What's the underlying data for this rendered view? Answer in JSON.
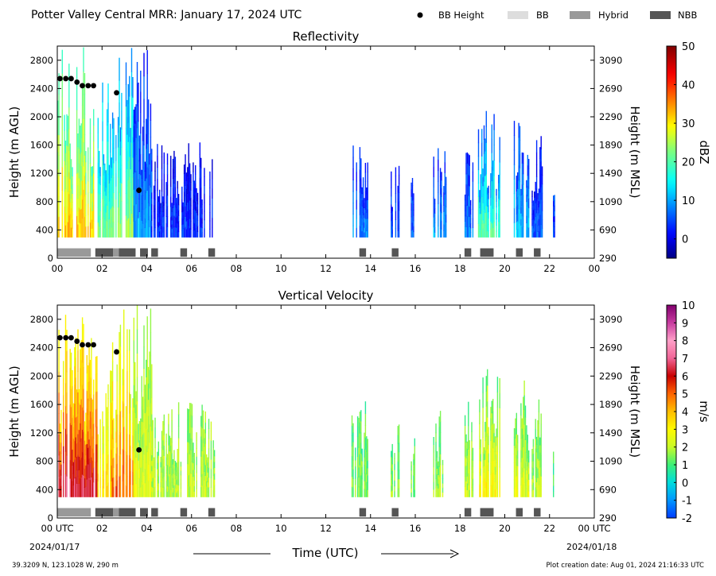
{
  "header": {
    "title": "Potter Valley Central MRR:  January 17, 2024 UTC",
    "legend": [
      {
        "label": "BB Height",
        "kind": "dot",
        "color": "#000000"
      },
      {
        "label": "BB",
        "kind": "box",
        "color": "#dddddd"
      },
      {
        "label": "Hybrid",
        "kind": "box",
        "color": "#999999"
      },
      {
        "label": "NBB",
        "kind": "box",
        "color": "#555555"
      }
    ]
  },
  "footer": {
    "location": "39.3209 N, 123.1028 W, 290 m",
    "created": "Plot creation date: Aug 01, 2024 21:16:33 UTC",
    "start_date": "2024/01/17",
    "end_date": "2024/01/18"
  },
  "colors": {
    "bb": "#dddddd",
    "hybrid": "#999999",
    "nbb": "#555555"
  },
  "chart_data": [
    {
      "type": "heatmap",
      "title": "Reflectivity",
      "xlabel": "",
      "ylabel": "Height (m AGL)",
      "ylabel_right": "Height (m MSL)",
      "xlim": [
        0,
        24
      ],
      "ylim": [
        0,
        3000
      ],
      "x_ticks": [
        "00",
        "02",
        "04",
        "06",
        "08",
        "10",
        "12",
        "14",
        "16",
        "18",
        "20",
        "22",
        "00"
      ],
      "y_ticks": [
        0,
        400,
        800,
        1200,
        1600,
        2000,
        2400,
        2800
      ],
      "y_ticks_right": [
        290,
        690,
        1090,
        1490,
        1890,
        2290,
        2690,
        3090
      ],
      "colorbar": {
        "label": "dBZ",
        "range": [
          -5,
          50
        ],
        "ticks": [
          0,
          10,
          20,
          30,
          40,
          50
        ],
        "colormap": "jet"
      },
      "bb_height": {
        "times": [
          0.12,
          0.38,
          0.62,
          0.88,
          1.12,
          1.38,
          1.62,
          2.65,
          3.65
        ],
        "heights": [
          2540,
          2540,
          2540,
          2490,
          2440,
          2440,
          2440,
          2340,
          960
        ]
      },
      "bb_type_segments": [
        {
          "start": 0.0,
          "end": 1.5,
          "type": "Hybrid"
        },
        {
          "start": 1.7,
          "end": 2.5,
          "type": "NBB"
        },
        {
          "start": 2.5,
          "end": 2.75,
          "type": "Hybrid"
        },
        {
          "start": 2.75,
          "end": 3.5,
          "type": "NBB"
        },
        {
          "start": 3.7,
          "end": 4.05,
          "type": "NBB"
        },
        {
          "start": 4.2,
          "end": 4.5,
          "type": "NBB"
        },
        {
          "start": 5.5,
          "end": 5.8,
          "type": "NBB"
        },
        {
          "start": 6.75,
          "end": 7.05,
          "type": "NBB"
        },
        {
          "start": 13.5,
          "end": 13.8,
          "type": "NBB"
        },
        {
          "start": 14.95,
          "end": 15.25,
          "type": "NBB"
        },
        {
          "start": 18.2,
          "end": 18.5,
          "type": "NBB"
        },
        {
          "start": 18.9,
          "end": 19.5,
          "type": "NBB"
        },
        {
          "start": 20.5,
          "end": 20.8,
          "type": "NBB"
        },
        {
          "start": 21.3,
          "end": 21.6,
          "type": "NBB"
        }
      ],
      "echo_regions": [
        {
          "t0": 0.0,
          "t1": 1.8,
          "top": 3000,
          "v_low": 32,
          "v_high": 18
        },
        {
          "t0": 1.8,
          "t1": 2.4,
          "top": 2600,
          "v_low": 22,
          "v_high": 10
        },
        {
          "t0": 2.4,
          "t1": 3.4,
          "top": 3000,
          "v_low": 24,
          "v_high": 8
        },
        {
          "t0": 3.4,
          "t1": 4.2,
          "top": 3000,
          "v_low": 10,
          "v_high": 2
        },
        {
          "t0": 4.2,
          "t1": 5.9,
          "top": 1650,
          "v_low": 4,
          "v_high": 0
        },
        {
          "t0": 5.9,
          "t1": 7.0,
          "top": 1650,
          "v_low": 3,
          "v_high": 1
        },
        {
          "t0": 13.1,
          "t1": 13.9,
          "top": 1650,
          "v_low": 8,
          "v_high": 2
        },
        {
          "t0": 14.9,
          "t1": 15.3,
          "top": 1350,
          "v_low": 5,
          "v_high": 2
        },
        {
          "t0": 15.8,
          "t1": 16.0,
          "top": 1600,
          "v_low": 6,
          "v_high": 3
        },
        {
          "t0": 16.8,
          "t1": 17.4,
          "top": 1700,
          "v_low": 10,
          "v_high": 2
        },
        {
          "t0": 18.2,
          "t1": 18.6,
          "top": 1700,
          "v_low": 8,
          "v_high": 2
        },
        {
          "t0": 18.8,
          "t1": 19.8,
          "top": 2100,
          "v_low": 20,
          "v_high": 5
        },
        {
          "t0": 20.4,
          "t1": 21.1,
          "top": 2150,
          "v_low": 12,
          "v_high": 4
        },
        {
          "t0": 21.2,
          "t1": 21.7,
          "top": 1750,
          "v_low": 6,
          "v_high": 1
        },
        {
          "t0": 22.15,
          "t1": 22.25,
          "top": 1300,
          "v_low": 4,
          "v_high": 4
        }
      ]
    },
    {
      "type": "heatmap",
      "title": "Vertical Velocity",
      "xlabel": "Time (UTC)",
      "ylabel": "Height (m AGL)",
      "ylabel_right": "Height (m MSL)",
      "xlim": [
        0,
        24
      ],
      "ylim": [
        0,
        3000
      ],
      "x_ticks": [
        "00 UTC",
        "02",
        "04",
        "06",
        "08",
        "10",
        "12",
        "14",
        "16",
        "18",
        "20",
        "22",
        "00 UTC"
      ],
      "y_ticks": [
        0,
        400,
        800,
        1200,
        1600,
        2000,
        2400,
        2800
      ],
      "y_ticks_right": [
        290,
        690,
        1090,
        1490,
        1890,
        2290,
        2690,
        3090
      ],
      "colorbar": {
        "label": "m/s",
        "range": [
          -2,
          10
        ],
        "ticks": [
          -2,
          -1,
          0,
          1,
          2,
          3,
          4,
          5,
          6,
          7,
          8,
          9,
          10
        ]
      },
      "bb_height": {
        "times": [
          0.12,
          0.38,
          0.62,
          0.88,
          1.12,
          1.38,
          1.62,
          2.65,
          3.65
        ],
        "heights": [
          2540,
          2540,
          2540,
          2490,
          2440,
          2440,
          2440,
          2340,
          960
        ]
      },
      "bb_type_segments": [
        {
          "start": 0.0,
          "end": 1.5,
          "type": "Hybrid"
        },
        {
          "start": 1.7,
          "end": 2.5,
          "type": "NBB"
        },
        {
          "start": 2.5,
          "end": 2.75,
          "type": "Hybrid"
        },
        {
          "start": 2.75,
          "end": 3.5,
          "type": "NBB"
        },
        {
          "start": 3.7,
          "end": 4.05,
          "type": "NBB"
        },
        {
          "start": 4.2,
          "end": 4.5,
          "type": "NBB"
        },
        {
          "start": 5.5,
          "end": 5.8,
          "type": "NBB"
        },
        {
          "start": 6.75,
          "end": 7.05,
          "type": "NBB"
        },
        {
          "start": 13.5,
          "end": 13.8,
          "type": "NBB"
        },
        {
          "start": 14.95,
          "end": 15.25,
          "type": "NBB"
        },
        {
          "start": 18.2,
          "end": 18.5,
          "type": "NBB"
        },
        {
          "start": 18.9,
          "end": 19.5,
          "type": "NBB"
        },
        {
          "start": 20.5,
          "end": 20.8,
          "type": "NBB"
        },
        {
          "start": 21.3,
          "end": 21.6,
          "type": "NBB"
        }
      ],
      "echo_regions": [
        {
          "t0": 0.0,
          "t1": 1.8,
          "top": 3000,
          "v_low": 6.5,
          "v_high": 2.5
        },
        {
          "t0": 1.8,
          "t1": 2.4,
          "top": 2600,
          "v_low": 3.5,
          "v_high": 2
        },
        {
          "t0": 2.4,
          "t1": 3.4,
          "top": 3000,
          "v_low": 5,
          "v_high": 2
        },
        {
          "t0": 3.4,
          "t1": 4.2,
          "top": 3000,
          "v_low": 2.5,
          "v_high": 1.5
        },
        {
          "t0": 4.2,
          "t1": 5.9,
          "top": 1650,
          "v_low": 2,
          "v_high": 1.5
        },
        {
          "t0": 5.9,
          "t1": 7.0,
          "top": 1650,
          "v_low": 2,
          "v_high": 1.5
        },
        {
          "t0": 13.1,
          "t1": 13.9,
          "top": 1650,
          "v_low": 1.5,
          "v_high": 1
        },
        {
          "t0": 14.9,
          "t1": 15.3,
          "top": 1350,
          "v_low": 1.5,
          "v_high": 1
        },
        {
          "t0": 15.8,
          "t1": 16.0,
          "top": 1600,
          "v_low": 1.5,
          "v_high": 1
        },
        {
          "t0": 16.8,
          "t1": 17.4,
          "top": 1700,
          "v_low": 1.8,
          "v_high": 1.2
        },
        {
          "t0": 18.2,
          "t1": 18.6,
          "top": 1700,
          "v_low": 2,
          "v_high": 1.3
        },
        {
          "t0": 18.8,
          "t1": 19.8,
          "top": 2100,
          "v_low": 3,
          "v_high": 1.2
        },
        {
          "t0": 20.4,
          "t1": 21.1,
          "top": 2150,
          "v_low": 2.5,
          "v_high": 1.3
        },
        {
          "t0": 21.2,
          "t1": 21.7,
          "top": 1750,
          "v_low": 2,
          "v_high": 1.2
        },
        {
          "t0": 22.15,
          "t1": 22.25,
          "top": 1300,
          "v_low": 1,
          "v_high": 1
        }
      ]
    }
  ]
}
